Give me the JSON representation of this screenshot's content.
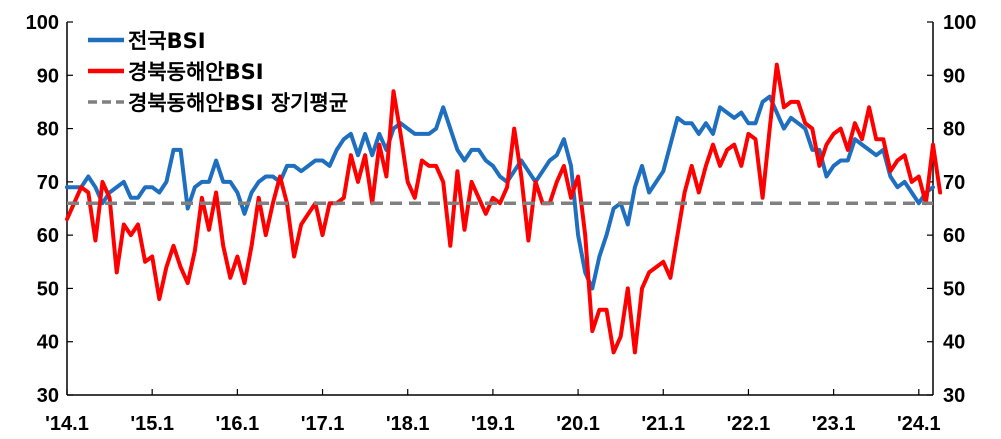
{
  "chart_data": {
    "type": "line",
    "title": "",
    "xlabel": "",
    "ylabel": "",
    "ylim": [
      30,
      100
    ],
    "y_ticks": [
      "30",
      "40",
      "50",
      "60",
      "70",
      "80",
      "90",
      "100"
    ],
    "x_ticks": [
      "'14.1",
      "'15.1",
      "'16.1",
      "'17.1",
      "'18.1",
      "'19.1",
      "'20.1",
      "'21.1",
      "'22.1",
      "'23.1",
      "'24.1"
    ],
    "grid": false,
    "legend_position": "top-left",
    "series": [
      {
        "name": "전국BSI",
        "color": "#1f6fc0",
        "style": "solid",
        "values": [
          69,
          69,
          69,
          71,
          69,
          66,
          68,
          69,
          70,
          67,
          67,
          69,
          69,
          68,
          70,
          76,
          76,
          65,
          69,
          70,
          70,
          74,
          70,
          70,
          68,
          64,
          68,
          70,
          71,
          71,
          70,
          73,
          73,
          72,
          73,
          74,
          74,
          73,
          76,
          78,
          79,
          75,
          79,
          75,
          79,
          76,
          80,
          81,
          80,
          79,
          79,
          79,
          80,
          84,
          80,
          76,
          74,
          76,
          76,
          74,
          73,
          71,
          70,
          72,
          74,
          72,
          70,
          72,
          74,
          75,
          78,
          73,
          60,
          53,
          50,
          56,
          60,
          65,
          66,
          62,
          69,
          73,
          68,
          70,
          72,
          77,
          82,
          81,
          81,
          79,
          81,
          79,
          84,
          83,
          82,
          83,
          81,
          81,
          85,
          86,
          83,
          80,
          82,
          81,
          80,
          76,
          76,
          71,
          73,
          74,
          74,
          78,
          77,
          76,
          75,
          76,
          71,
          69,
          70,
          68,
          66,
          68,
          69
        ]
      },
      {
        "name": "경북동해안BSI",
        "color": "#ff0000",
        "style": "solid",
        "values": [
          63,
          66,
          69,
          68,
          59,
          70,
          67,
          53,
          62,
          60,
          62,
          55,
          56,
          48,
          54,
          58,
          54,
          51,
          57,
          67,
          61,
          68,
          58,
          52,
          56,
          51,
          58,
          67,
          60,
          66,
          71,
          66,
          56,
          62,
          64,
          66,
          60,
          66,
          66,
          67,
          75,
          70,
          75,
          66,
          77,
          71,
          87,
          79,
          70,
          67,
          74,
          73,
          73,
          70,
          58,
          72,
          61,
          70,
          67,
          64,
          67,
          66,
          69,
          80,
          71,
          59,
          70,
          66,
          66,
          70,
          73,
          67,
          71,
          60,
          42,
          46,
          46,
          38,
          41,
          50,
          38,
          50,
          53,
          54,
          55,
          52,
          60,
          68,
          73,
          68,
          73,
          77,
          73,
          76,
          77,
          73,
          79,
          78,
          67,
          80,
          92,
          84,
          85,
          85,
          81,
          80,
          73,
          77,
          79,
          80,
          76,
          81,
          78,
          84,
          78,
          78,
          72,
          74,
          75,
          70,
          71,
          66,
          77,
          68
        ]
      },
      {
        "name": "경북동해안BSI 장기평균",
        "color": "#808080",
        "style": "dashed",
        "values": [
          66
        ]
      }
    ]
  }
}
